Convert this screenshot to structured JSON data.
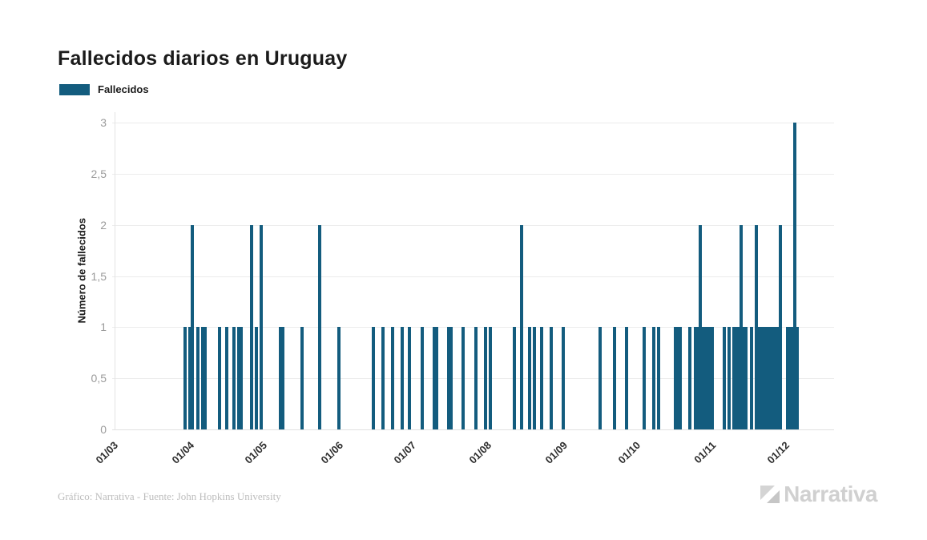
{
  "page": {
    "title": "Fallecidos diarios en Uruguay",
    "background": "#ffffff"
  },
  "legend": {
    "label": "Fallecidos",
    "swatch_color": "#135c7e"
  },
  "y_axis": {
    "title": "Número de fallecidos"
  },
  "footer": {
    "credit": "Gráfico: Narrativa - Fuente: John Hopkins University",
    "brand": "Narrativa",
    "brand_color": "#d0d0d0"
  },
  "colors": {
    "bar": "#135c7e",
    "grid": "#ececec",
    "tick_text": "#9b9b9b"
  },
  "chart_data": {
    "type": "bar",
    "title": "Fallecidos diarios en Uruguay",
    "xlabel": "",
    "ylabel": "Número de fallecidos",
    "series_name": "Fallecidos",
    "bar_color": "#135c7e",
    "grid": "horizontal-only",
    "legend_position": "top-left",
    "ylim": [
      0,
      3
    ],
    "y_tick_values": [
      0,
      0.5,
      1,
      1.5,
      2,
      2.5,
      3
    ],
    "y_tick_labels": [
      "0",
      "0,5",
      "1",
      "1,5",
      "2",
      "2,5",
      "3"
    ],
    "x_unit": "days_after_first_tick_01_03",
    "x_domain_days": [
      0,
      296
    ],
    "x_tick_labels": [
      "01/03",
      "01/04",
      "01/05",
      "01/06",
      "01/07",
      "01/08",
      "01/09",
      "01/10",
      "01/11",
      "01/12"
    ],
    "x_tick_day_offsets": [
      0,
      31,
      61,
      92,
      122,
      153,
      184,
      214,
      245,
      275
    ],
    "points_day_value": [
      [
        30,
        1
      ],
      [
        32,
        1
      ],
      [
        33,
        2
      ],
      [
        35,
        1
      ],
      [
        37,
        1
      ],
      [
        38,
        1
      ],
      [
        44,
        1
      ],
      [
        47,
        1
      ],
      [
        50,
        1
      ],
      [
        52,
        1
      ],
      [
        53,
        1
      ],
      [
        57,
        2
      ],
      [
        59,
        1
      ],
      [
        61,
        2
      ],
      [
        69,
        1
      ],
      [
        70,
        1
      ],
      [
        78,
        1
      ],
      [
        85,
        2
      ],
      [
        93,
        1
      ],
      [
        107,
        1
      ],
      [
        111,
        1
      ],
      [
        115,
        1
      ],
      [
        119,
        1
      ],
      [
        122,
        1
      ],
      [
        127,
        1
      ],
      [
        132,
        1
      ],
      [
        133,
        1
      ],
      [
        138,
        1
      ],
      [
        139,
        1
      ],
      [
        144,
        1
      ],
      [
        149,
        1
      ],
      [
        153,
        1
      ],
      [
        155,
        1
      ],
      [
        165,
        1
      ],
      [
        168,
        2
      ],
      [
        171,
        1
      ],
      [
        173,
        1
      ],
      [
        176,
        1
      ],
      [
        180,
        1
      ],
      [
        185,
        1
      ],
      [
        200,
        1
      ],
      [
        206,
        1
      ],
      [
        211,
        1
      ],
      [
        218,
        1
      ],
      [
        222,
        1
      ],
      [
        224,
        1
      ],
      [
        231,
        1
      ],
      [
        232,
        1
      ],
      [
        233,
        1
      ],
      [
        237,
        1
      ],
      [
        239,
        1
      ],
      [
        240,
        1
      ],
      [
        241,
        2
      ],
      [
        242,
        1
      ],
      [
        243,
        1
      ],
      [
        244,
        1
      ],
      [
        245,
        1
      ],
      [
        246,
        1
      ],
      [
        251,
        1
      ],
      [
        253,
        1
      ],
      [
        255,
        1
      ],
      [
        256,
        1
      ],
      [
        257,
        1
      ],
      [
        258,
        2
      ],
      [
        259,
        1
      ],
      [
        260,
        1
      ],
      [
        262,
        1
      ],
      [
        264,
        2
      ],
      [
        265,
        1
      ],
      [
        266,
        1
      ],
      [
        267,
        1
      ],
      [
        268,
        1
      ],
      [
        269,
        1
      ],
      [
        270,
        1
      ],
      [
        271,
        1
      ],
      [
        272,
        1
      ],
      [
        273,
        1
      ],
      [
        274,
        2
      ],
      [
        277,
        1
      ],
      [
        278,
        1
      ],
      [
        279,
        1
      ],
      [
        280,
        3
      ],
      [
        281,
        1
      ]
    ]
  }
}
